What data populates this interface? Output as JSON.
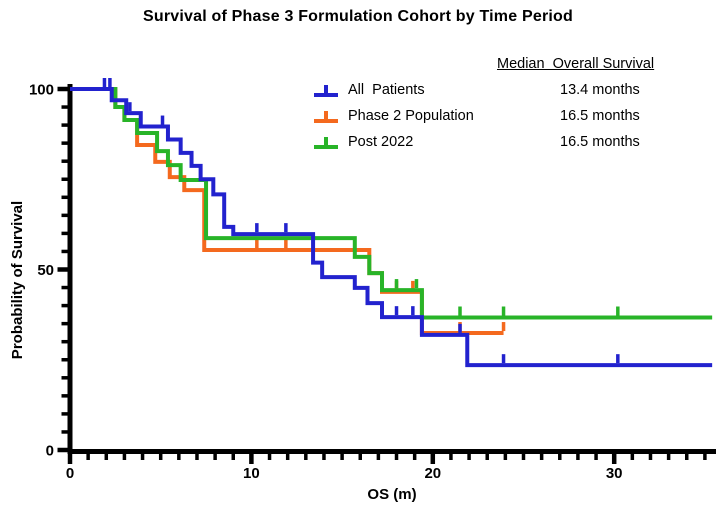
{
  "title": "Survival of Phase 3 Formulation Cohort by Time Period",
  "legend": {
    "header": "Median  Overall Survival",
    "entries": [
      {
        "label": "All  Patients",
        "median": "13.4 months",
        "color": "#2222CE",
        "icon": "km-censor-tick-symbol"
      },
      {
        "label": "Phase 2 Population",
        "median": "16.5 months",
        "color": "#F4691E",
        "icon": "km-censor-tick-symbol"
      },
      {
        "label": "Post 2022",
        "median": "16.5 months",
        "color": "#28B428",
        "icon": "km-censor-tick-symbol"
      }
    ]
  },
  "chart_data": {
    "type": "line",
    "subtype": "kaplan-meier-step",
    "title": "Survival of Phase 3 Formulation Cohort by Time Period",
    "xlabel": "OS (m)",
    "ylabel": "Probability of Survival",
    "xlim": [
      0,
      35.4
    ],
    "ylim": [
      0,
      100
    ],
    "x_major_ticks": [
      0,
      10,
      20,
      30
    ],
    "x_minor_step": 1,
    "y_major_ticks": [
      0,
      50,
      100
    ],
    "y_minor_step": 5,
    "grid": false,
    "legend_position": "top-right-inside",
    "axis_color": "#000000",
    "series": [
      {
        "name": "All  Patients",
        "color": "#2222CE",
        "median_months": 13.4,
        "steps": [
          [
            0,
            100
          ],
          [
            2.3,
            96.9
          ],
          [
            3.1,
            93.3
          ],
          [
            3.9,
            89.6
          ],
          [
            5.4,
            86.0
          ],
          [
            6.1,
            82.3
          ],
          [
            6.7,
            78.7
          ],
          [
            7.2,
            75.0
          ],
          [
            7.9,
            70.8
          ],
          [
            8.5,
            61.8
          ],
          [
            9.0,
            59.8
          ],
          [
            13.4,
            51.9
          ],
          [
            13.9,
            47.9
          ],
          [
            15.7,
            44.9
          ],
          [
            16.4,
            40.7
          ],
          [
            17.2,
            36.8
          ],
          [
            19.4,
            31.9
          ],
          [
            21.9,
            23.5
          ]
        ],
        "end_month": 35.4,
        "censors": [
          [
            1.9,
            100
          ],
          [
            2.2,
            100
          ],
          [
            3.3,
            93.3
          ],
          [
            5.1,
            89.6
          ],
          [
            10.3,
            59.8
          ],
          [
            11.9,
            59.8
          ],
          [
            18.0,
            36.8
          ],
          [
            18.9,
            36.8
          ],
          [
            21.5,
            31.9
          ],
          [
            23.9,
            23.5
          ],
          [
            30.2,
            23.5
          ]
        ]
      },
      {
        "name": "Phase 2 Population",
        "color": "#F4691E",
        "median_months": 16.5,
        "steps": [
          [
            0,
            100
          ],
          [
            2.5,
            95.0
          ],
          [
            3.0,
            91.4
          ],
          [
            3.7,
            84.5
          ],
          [
            4.7,
            79.8
          ],
          [
            5.5,
            75.6
          ],
          [
            6.3,
            72.0
          ],
          [
            7.4,
            55.4
          ],
          [
            16.5,
            49.0
          ],
          [
            17.2,
            43.8
          ],
          [
            19.4,
            32.4
          ]
        ],
        "end_month": 23.9,
        "censors": [
          [
            10.3,
            55.4
          ],
          [
            11.9,
            55.4
          ],
          [
            18.0,
            43.8
          ],
          [
            18.9,
            43.8
          ],
          [
            21.5,
            32.4
          ],
          [
            23.9,
            32.4
          ]
        ]
      },
      {
        "name": "Post 2022",
        "color": "#28B428",
        "median_months": 16.5,
        "steps": [
          [
            0,
            100
          ],
          [
            2.5,
            95.0
          ],
          [
            3.0,
            91.4
          ],
          [
            3.7,
            87.8
          ],
          [
            4.8,
            82.8
          ],
          [
            5.4,
            78.9
          ],
          [
            6.1,
            74.8
          ],
          [
            7.5,
            58.7
          ],
          [
            15.7,
            53.5
          ],
          [
            16.5,
            49.0
          ],
          [
            17.2,
            44.3
          ],
          [
            19.4,
            36.7
          ]
        ],
        "end_month": 35.4,
        "censors": [
          [
            18.0,
            44.3
          ],
          [
            19.1,
            44.3
          ],
          [
            21.5,
            36.7
          ],
          [
            23.9,
            36.7
          ],
          [
            30.2,
            36.7
          ]
        ]
      }
    ]
  },
  "axis": {
    "x_tick_labels": [
      "0",
      "10",
      "20",
      "30"
    ],
    "y_tick_labels": [
      "100",
      "50",
      "0"
    ]
  }
}
